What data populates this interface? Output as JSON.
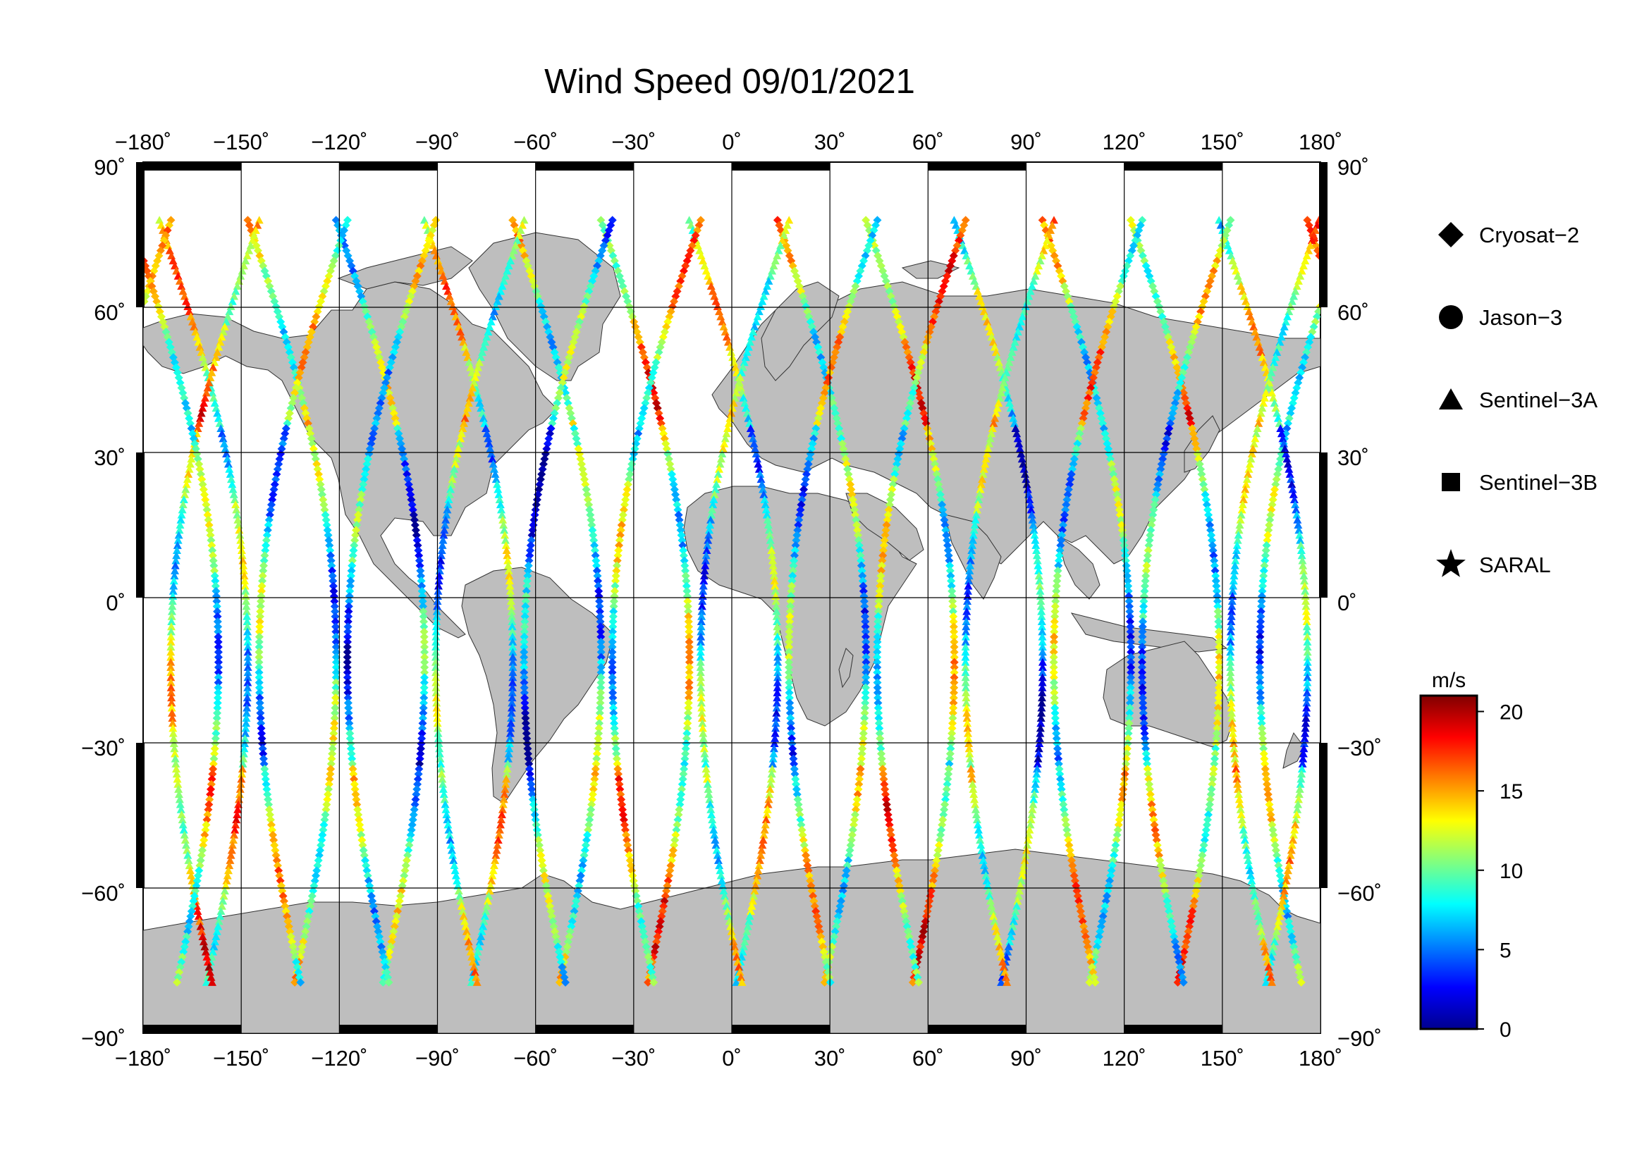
{
  "title": "Wind Speed 09/01/2021",
  "map": {
    "projection": "equirectangular",
    "lon_range": [
      -180,
      180
    ],
    "lat_range": [
      -90,
      90
    ],
    "land_color": "#bebebe",
    "ocean_color": "#ffffff",
    "grid": true,
    "lon_ticks": [
      "−180˚",
      "−150˚",
      "−120˚",
      "−90˚",
      "−60˚",
      "−30˚",
      "0˚",
      "30˚",
      "60˚",
      "90˚",
      "120˚",
      "150˚",
      "180˚"
    ],
    "lat_ticks_left": [
      "90˚",
      "60˚",
      "30˚",
      "0˚",
      "−30˚",
      "−60˚",
      "−90˚"
    ],
    "lat_ticks_right": [
      "90˚",
      "60˚",
      "30˚",
      "0˚",
      "−30˚",
      "−60˚",
      "−90˚"
    ]
  },
  "legend": {
    "items": [
      {
        "label": "Cryosat−2",
        "symbol": "diamond"
      },
      {
        "label": "Jason−3",
        "symbol": "circle"
      },
      {
        "label": "Sentinel−3A",
        "symbol": "triangle"
      },
      {
        "label": "Sentinel−3B",
        "symbol": "square"
      },
      {
        "label": "SARAL",
        "symbol": "star"
      }
    ]
  },
  "colorbar": {
    "unit": "m/s",
    "range": [
      0,
      21
    ],
    "ticks": [
      "20",
      "15",
      "10",
      "5",
      "0"
    ],
    "colormap": [
      "#00008f",
      "#0000ff",
      "#0080ff",
      "#00ffff",
      "#80ff80",
      "#ffff00",
      "#ff8000",
      "#ff0000",
      "#800000"
    ]
  }
}
